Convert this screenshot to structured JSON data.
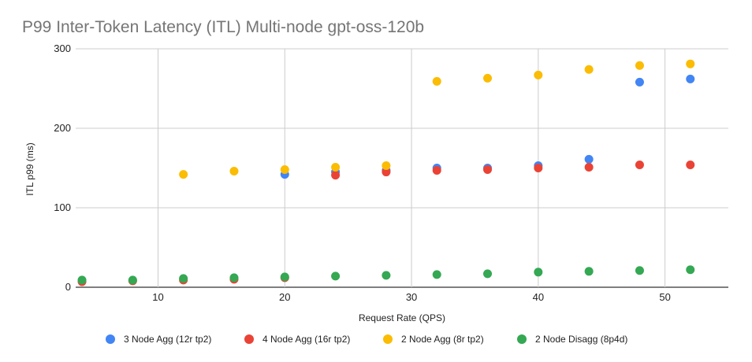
{
  "chart_data": {
    "type": "scatter",
    "title": "P99 Inter-Token Latency (ITL) Multi-node gpt-oss-120b",
    "xlabel": "Request Rate (QPS)",
    "ylabel": "ITL p99 (ms)",
    "xlim": [
      3.5,
      55
    ],
    "ylim": [
      0,
      300
    ],
    "xticks": [
      10,
      20,
      30,
      40,
      50
    ],
    "yticks": [
      0,
      100,
      200,
      300
    ],
    "grid": {
      "horizontal": true,
      "vertical": true
    },
    "legend_position": "bottom",
    "series": [
      {
        "name": "3 Node Agg (12r tp2)",
        "color": "#4285F4",
        "points": [
          [
            20,
            142
          ],
          [
            24,
            145
          ],
          [
            28,
            147
          ],
          [
            32,
            150
          ],
          [
            36,
            150
          ],
          [
            40,
            153
          ],
          [
            44,
            161
          ],
          [
            48,
            258
          ],
          [
            52,
            262
          ]
        ]
      },
      {
        "name": "4 Node Agg (16r tp2)",
        "color": "#EA4335",
        "points": [
          [
            4,
            7
          ],
          [
            8,
            8
          ],
          [
            12,
            9
          ],
          [
            16,
            10
          ],
          [
            20,
            12
          ],
          [
            24,
            141
          ],
          [
            28,
            145
          ],
          [
            32,
            147
          ],
          [
            36,
            148
          ],
          [
            40,
            150
          ],
          [
            44,
            151
          ],
          [
            48,
            154
          ],
          [
            52,
            154
          ]
        ]
      },
      {
        "name": "2 Node Agg (8r tp2)",
        "color": "#FBBC04",
        "points": [
          [
            12,
            142
          ],
          [
            16,
            146
          ],
          [
            20,
            148
          ],
          [
            24,
            151
          ],
          [
            28,
            153
          ],
          [
            32,
            259
          ],
          [
            36,
            263
          ],
          [
            40,
            267
          ],
          [
            44,
            274
          ],
          [
            48,
            279
          ],
          [
            52,
            281
          ]
        ]
      },
      {
        "name": "2 Node Disagg (8p4d)",
        "color": "#34A853",
        "points": [
          [
            4,
            9
          ],
          [
            8,
            9
          ],
          [
            12,
            11
          ],
          [
            16,
            12
          ],
          [
            20,
            13
          ],
          [
            24,
            14
          ],
          [
            28,
            15
          ],
          [
            32,
            16
          ],
          [
            36,
            17
          ],
          [
            40,
            19
          ],
          [
            44,
            20
          ],
          [
            48,
            21
          ],
          [
            52,
            22
          ]
        ]
      }
    ]
  }
}
